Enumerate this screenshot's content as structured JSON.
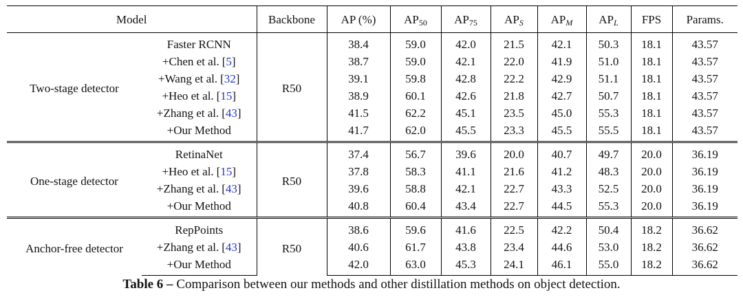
{
  "table": {
    "header": [
      {
        "text": "Model"
      },
      {
        "text": "Backbone"
      },
      {
        "text": "AP (%)"
      },
      {
        "text": "AP",
        "sub": "50"
      },
      {
        "text": "AP",
        "sub": "75"
      },
      {
        "text": "AP",
        "sub": "S",
        "italic": true
      },
      {
        "text": "AP",
        "sub": "M",
        "italic": true
      },
      {
        "text": "AP",
        "sub": "L",
        "italic": true
      },
      {
        "text": "FPS"
      },
      {
        "text": "Params."
      }
    ],
    "groups": [
      {
        "label": "Two-stage detector",
        "backbone": "R50",
        "rows": [
          {
            "method": "Faster RCNN",
            "values": [
              "38.4",
              "59.0",
              "42.0",
              "21.5",
              "42.1",
              "50.3",
              "18.1",
              "43.57"
            ]
          },
          {
            "method": "+Chen et al.",
            "cite": "[5]",
            "values": [
              "38.7",
              "59.0",
              "42.1",
              "22.0",
              "41.9",
              "51.0",
              "18.1",
              "43.57"
            ]
          },
          {
            "method": "+Wang et al.",
            "cite": "[32]",
            "values": [
              "39.1",
              "59.8",
              "42.8",
              "22.2",
              "42.9",
              "51.1",
              "18.1",
              "43.57"
            ]
          },
          {
            "method": "+Heo et al.",
            "cite": "[15]",
            "values": [
              "38.9",
              "60.1",
              "42.6",
              "21.8",
              "42.7",
              "50.7",
              "18.1",
              "43.57"
            ]
          },
          {
            "method": "+Zhang et al.",
            "cite": "[43]",
            "values": [
              "41.5",
              "62.2",
              "45.1",
              "23.5",
              "45.0",
              "55.3",
              "18.1",
              "43.57"
            ]
          },
          {
            "method": "+Our Method",
            "values": [
              "41.7",
              "62.0",
              "45.5",
              "23.3",
              "45.5",
              "55.5",
              "18.1",
              "43.57"
            ]
          }
        ]
      },
      {
        "label": "One-stage detector",
        "backbone": "R50",
        "rows": [
          {
            "method": "RetinaNet",
            "values": [
              "37.4",
              "56.7",
              "39.6",
              "20.0",
              "40.7",
              "49.7",
              "20.0",
              "36.19"
            ]
          },
          {
            "method": "+Heo et al.",
            "cite": "[15]",
            "values": [
              "37.8",
              "58.3",
              "41.1",
              "21.6",
              "41.2",
              "48.3",
              "20.0",
              "36.19"
            ]
          },
          {
            "method": "+Zhang et al.",
            "cite": "[43]",
            "values": [
              "39.6",
              "58.8",
              "42.1",
              "22.7",
              "43.3",
              "52.5",
              "20.0",
              "36.19"
            ]
          },
          {
            "method": "+Our Method",
            "values": [
              "40.8",
              "60.4",
              "43.4",
              "22.7",
              "44.5",
              "55.3",
              "20.0",
              "36.19"
            ]
          }
        ]
      },
      {
        "label": "Anchor-free detector",
        "backbone": "R50",
        "rows": [
          {
            "method": "RepPoints",
            "values": [
              "38.6",
              "59.6",
              "41.6",
              "22.5",
              "42.2",
              "50.4",
              "18.2",
              "36.62"
            ]
          },
          {
            "method": "+Zhang et al.",
            "cite": "[43]",
            "values": [
              "40.6",
              "61.7",
              "43.8",
              "23.4",
              "44.6",
              "53.0",
              "18.2",
              "36.62"
            ]
          },
          {
            "method": "+Our Method",
            "values": [
              "42.0",
              "63.0",
              "45.3",
              "24.1",
              "46.1",
              "55.0",
              "18.2",
              "36.62"
            ]
          }
        ]
      }
    ]
  },
  "caption": {
    "label": "Table 6 –",
    "text": "Comparison between our methods and other distillation methods on object detection."
  }
}
